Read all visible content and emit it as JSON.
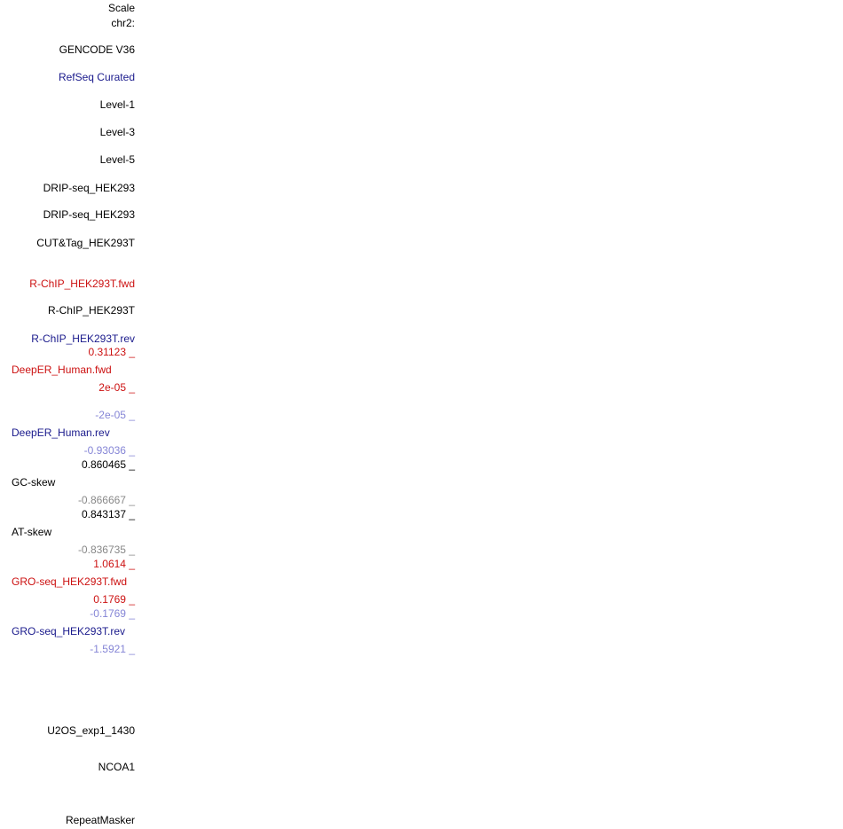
{
  "labels": [
    "Scale",
    "chr2:",
    "GENCODE V36",
    "RefSeq Curated",
    "Level-1",
    "Level-3",
    "Level-5",
    "DRIP-seq_HEK293",
    "DRIP-seq_HEK293",
    "CUT&Tag_HEK293T",
    "R-ChIP_HEK293T.fwd",
    "R-ChIP_HEK293T",
    "R-ChIP_HEK293T.rev",
    "0.31123 _",
    "DeepER_Human.fwd",
    "2e-05 _",
    "-2e-05 _",
    "DeepER_Human.rev",
    "-0.93036 _",
    "0.860465 _",
    "GC-skew",
    "-0.866667 _",
    "0.843137 _",
    "AT-skew",
    "-0.836735 _",
    "1.0614 _",
    "GRO-seq_HEK293T.fwd",
    "0.1769 _",
    "-0.1769 _",
    "GRO-seq_HEK293T.rev",
    "-1.5921 _",
    "U2OS_exp1_1430",
    "NCOA1",
    "RepeatMasker"
  ]
}
